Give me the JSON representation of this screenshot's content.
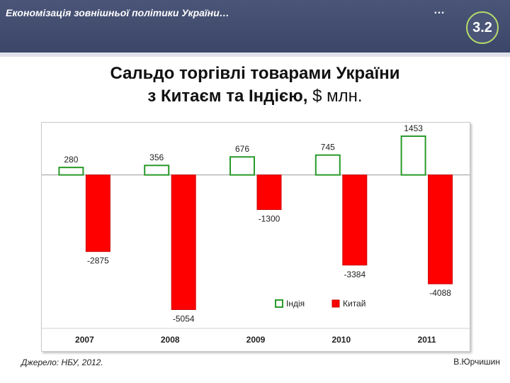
{
  "header": {
    "title": "Економізація зовнішньої політики України…",
    "dots": "…",
    "slide_number": "3.2"
  },
  "slide": {
    "title_line1": "Сальдо торгівлі товарами України",
    "title_line2": "з Китаєм та Індією,",
    "title_unit": "$ млн."
  },
  "chart_data": {
    "type": "bar",
    "categories": [
      "2007",
      "2008",
      "2009",
      "2010",
      "2011"
    ],
    "series": [
      {
        "name": "Індія",
        "values": [
          280,
          356,
          676,
          745,
          1453
        ],
        "color": "#ffffff",
        "stroke": "#2a9a2a"
      },
      {
        "name": "Китай",
        "values": [
          -2875,
          -5054,
          -1300,
          -3384,
          -4088
        ],
        "color": "#ff0000",
        "stroke": "#cc0000"
      }
    ],
    "ylim": [
      -5600,
      1800
    ],
    "grid": false,
    "legend_position": "bottom-right"
  },
  "footer": {
    "source": "Джерело: НБУ, 2012.",
    "author": "В.Юрчишин"
  },
  "colors": {
    "header": "#4a5578",
    "badge_ring": "#b4d86a"
  }
}
